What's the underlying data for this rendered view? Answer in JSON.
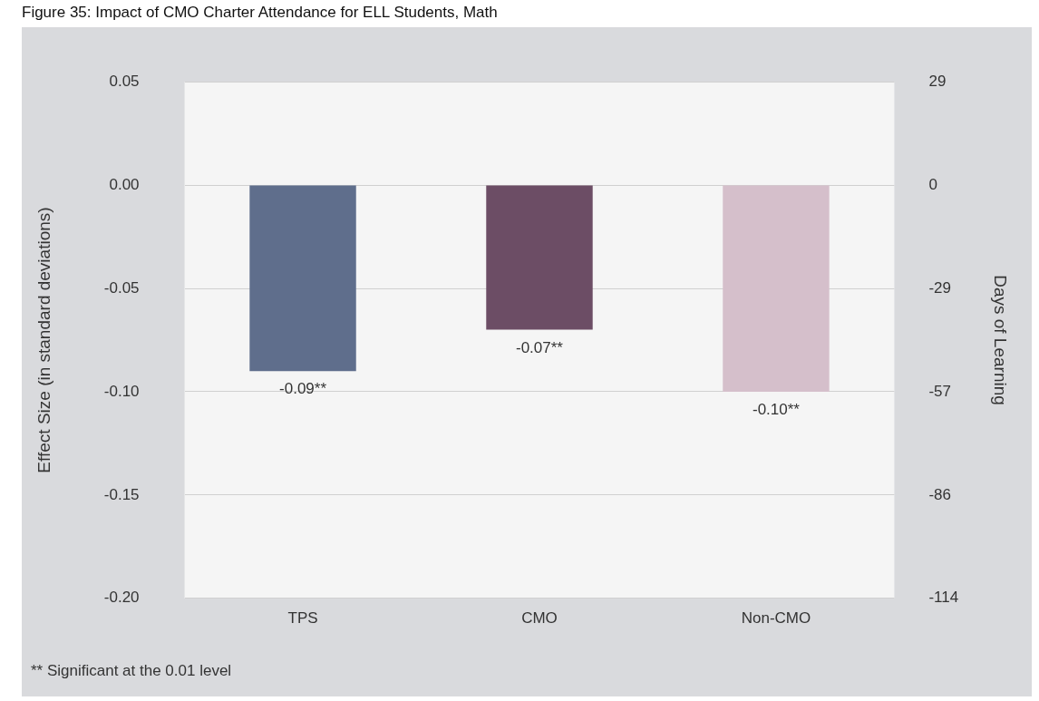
{
  "chart_data": {
    "type": "bar",
    "title": "Figure 35: Impact of CMO Charter Attendance for ELL Students, Math",
    "categories": [
      "TPS",
      "CMO",
      "Non-CMO"
    ],
    "values": [
      -0.09,
      -0.07,
      -0.1
    ],
    "colors": [
      "#5f6e8c",
      "#6c4d65",
      "#d5bfcb"
    ],
    "data_labels": true,
    "value_labels": [
      "-0.09**",
      "-0.07**",
      "-0.10**"
    ],
    "ylabel": "Effect Size (in standard deviations)",
    "y2label": "Days of Learning",
    "ylim": [
      -0.2,
      0.05
    ],
    "yticks": [
      {
        "value": 0.05,
        "label": "0.05"
      },
      {
        "value": 0,
        "label": "0.00"
      },
      {
        "value": -0.05,
        "label": "-0.05"
      },
      {
        "value": -0.1,
        "label": "-0.10"
      },
      {
        "value": -0.15,
        "label": "-0.15"
      },
      {
        "value": -0.2,
        "label": "-0.20"
      }
    ],
    "y2lim": [
      -114.4,
      28.6
    ],
    "y2ticks": [
      {
        "value": 28.6,
        "label": "29"
      },
      0,
      {
        "value": -28.6,
        "label": "-29"
      },
      {
        "value": -57.2,
        "label": "-57"
      },
      {
        "value": -85.8,
        "label": "-86"
      },
      {
        "value": -114.4,
        "label": "-114"
      }
    ],
    "grid": "y",
    "annotations": [
      "** Significant at the 0.01 level"
    ]
  }
}
